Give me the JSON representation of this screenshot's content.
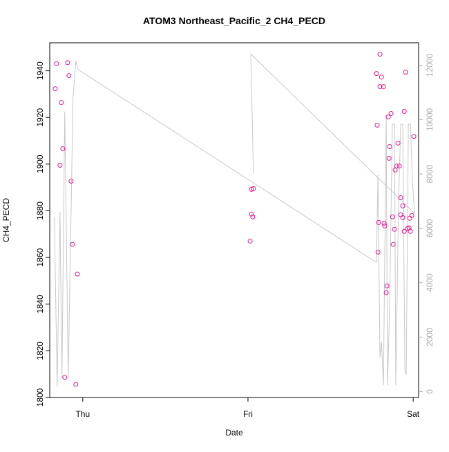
{
  "chart_data": {
    "type": "scatter",
    "title": "ATOM3 Northeast_Pacific_2 CH4_PECD",
    "xlabel": "Date",
    "ylabel": "CH4_PECD",
    "xlim": [
      -0.2,
      2.033
    ],
    "xticks": [
      {
        "value": 0,
        "label": "Thu"
      },
      {
        "value": 1,
        "label": "Fri"
      },
      {
        "value": 2,
        "label": "Sat"
      }
    ],
    "ylim": [
      1800,
      1952
    ],
    "yticks": [
      1800,
      1820,
      1840,
      1860,
      1880,
      1900,
      1920,
      1940
    ],
    "y2lim": [
      -219,
      12826
    ],
    "y2ticks": [
      0,
      2000,
      4000,
      6000,
      8000,
      10000,
      12000
    ],
    "series": [
      {
        "type": "scatter",
        "color": "#ee1289",
        "x": [
          -0.167,
          -0.159,
          -0.13,
          -0.121,
          -0.138,
          -0.109,
          -0.092,
          -0.084,
          -0.071,
          -0.063,
          -0.042,
          -0.033,
          1.013,
          1.021,
          1.029,
          1.021,
          1.033,
          1.778,
          1.799,
          1.808,
          1.799,
          1.82,
          1.782,
          1.791,
          1.787,
          1.824,
          1.828,
          1.841,
          1.837,
          1.849,
          1.866,
          1.854,
          1.858,
          1.875,
          1.879,
          1.887,
          1.891,
          1.9,
          1.908,
          1.916,
          1.925,
          1.937,
          1.925,
          1.937,
          1.946,
          1.954,
          1.946,
          1.966,
          1.975,
          1.979,
          1.992,
          1.983,
          2.004
        ],
        "values": [
          1932.3,
          1943,
          1926.4,
          1906.6,
          1899.5,
          1808.6,
          1943.5,
          1937.9,
          1892.7,
          1865.6,
          1805.6,
          1852.9,
          1867,
          1878.6,
          1877.4,
          1889.2,
          1889.5,
          1938.8,
          1947.1,
          1937.3,
          1933.2,
          1933.2,
          1916.7,
          1875,
          1862.3,
          1874.7,
          1873.5,
          1847.8,
          1844.9,
          1920.2,
          1921.7,
          1902.5,
          1907.5,
          1877.4,
          1865.6,
          1872.1,
          1897.5,
          1899.2,
          1909,
          1899.2,
          1885.6,
          1882.1,
          1878.3,
          1877.1,
          1871.2,
          1939.4,
          1922.6,
          1872.4,
          1872.7,
          1876.8,
          1878,
          1871.2,
          1911.9
        ]
      },
      {
        "type": "line",
        "axis": "y2",
        "color": "#c8c8c8",
        "x": [
          -0.172,
          -0.155,
          -0.138,
          -0.126,
          -0.109,
          -0.088,
          -0.059,
          -0.042,
          -0.029,
          1.778,
          1.787,
          1.799,
          1.808,
          1.82,
          1.837,
          1.845,
          1.858,
          1.874,
          1.887,
          1.895,
          1.912,
          1.925,
          1.937,
          1.95,
          1.958,
          1.971,
          1.983,
          1.996,
          2.008,
          1.017,
          1.033
        ],
        "values": [
          6426,
          181,
          6606,
          490,
          10297,
          490,
          10813,
          12155,
          11845,
          4748,
          7974,
          1264,
          1832,
          232,
          10168,
          232,
          3329,
          9832,
          9832,
          232,
          7071,
          9832,
          9832,
          748,
          619,
          9832,
          9832,
          7716,
          6555,
          12413,
          8026
        ]
      }
    ]
  }
}
